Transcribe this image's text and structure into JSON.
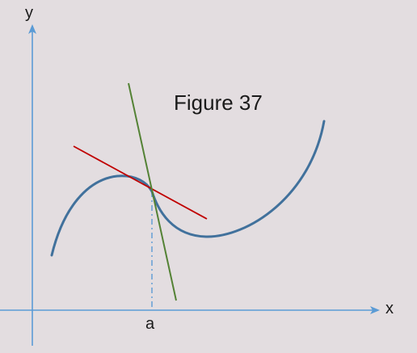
{
  "figure": {
    "title": "Figure 37",
    "axes": {
      "x_label": "x",
      "y_label": "y"
    },
    "point_label": "a",
    "colors": {
      "background": "#e3dde0",
      "axes": "#5b9bd5",
      "curve": "#41719c",
      "tangent_line": "#c00000",
      "normal_line": "#548235",
      "dashdot_guide": "#5b9bd5"
    }
  }
}
